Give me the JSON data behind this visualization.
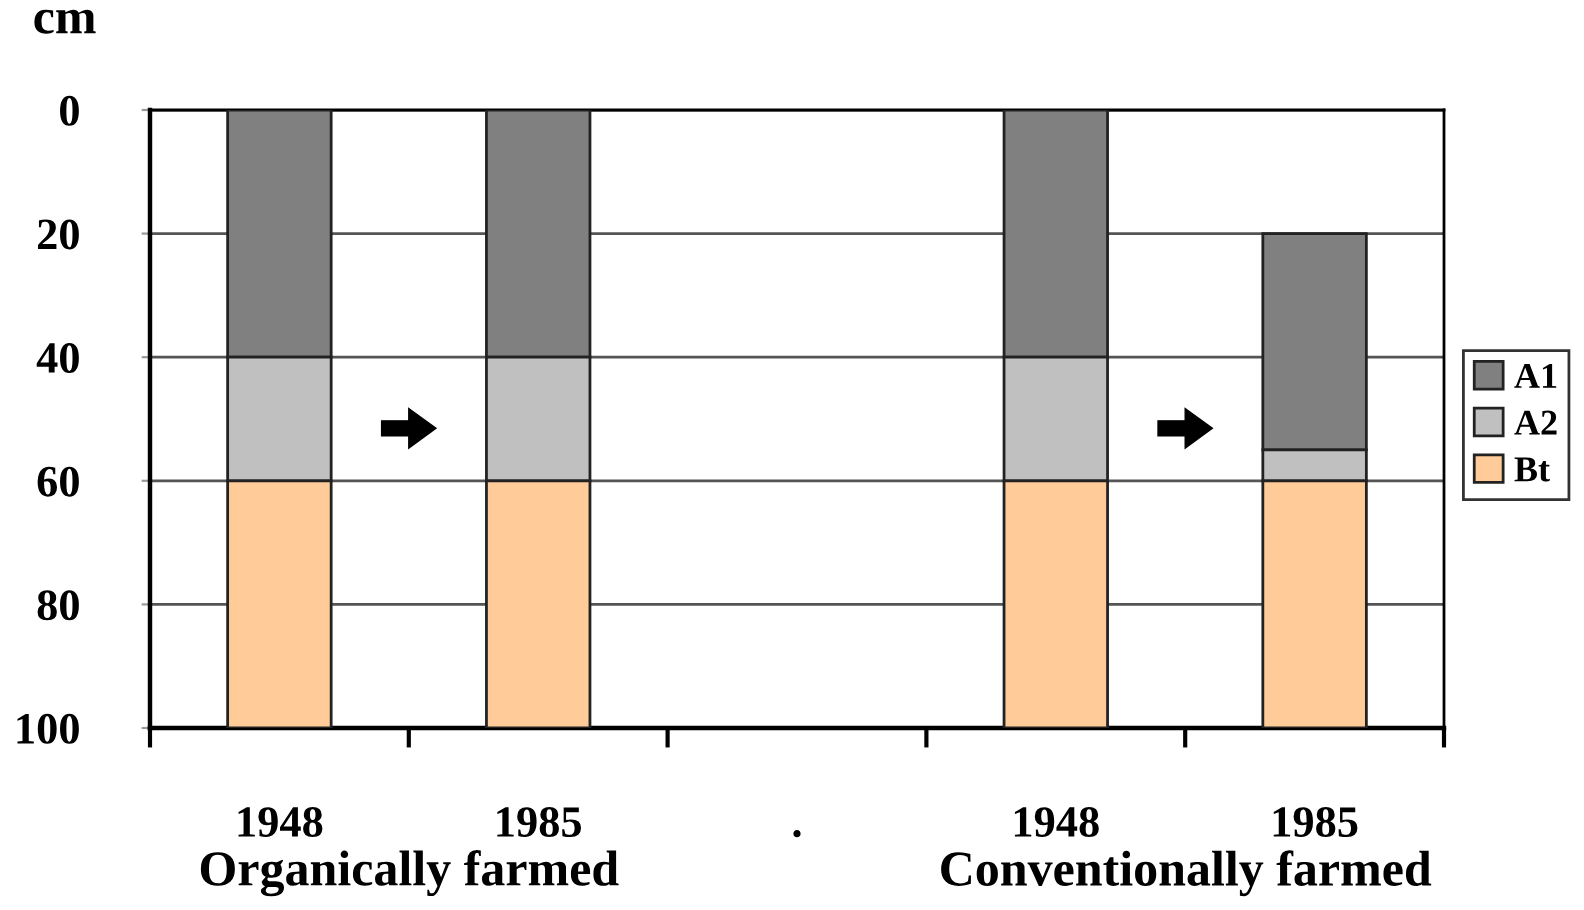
{
  "chart_data": {
    "type": "bar",
    "categories": [
      "1948",
      "1985",
      ".",
      "1948",
      "1985"
    ],
    "series": [
      {
        "name": "A1",
        "color": "#808080",
        "base": [
          0,
          0,
          null,
          0,
          20
        ],
        "values": [
          40,
          40,
          null,
          40,
          35
        ]
      },
      {
        "name": "A2",
        "color": "#c0c0c0",
        "base": [
          40,
          40,
          null,
          40,
          55
        ],
        "values": [
          20,
          20,
          null,
          20,
          5
        ]
      },
      {
        "name": "Bt",
        "color": "#ffcc99",
        "base": [
          60,
          60,
          null,
          60,
          60
        ],
        "values": [
          40,
          40,
          null,
          40,
          40
        ]
      }
    ],
    "ylabel": "cm",
    "ylim": [
      100,
      0
    ],
    "yticks": [
      0,
      20,
      40,
      60,
      80,
      100
    ],
    "grid": "y",
    "legend": "right",
    "annotations": [
      "Organically farmed",
      "Conventionally farmed"
    ]
  }
}
